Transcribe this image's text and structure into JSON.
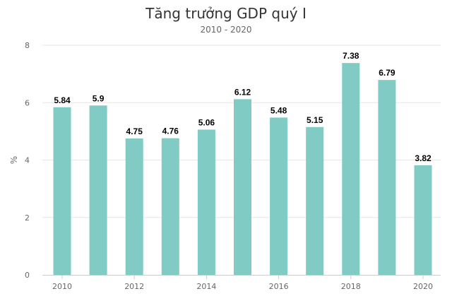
{
  "chart_data": {
    "type": "bar",
    "title": "Tăng trưởng GDP quý I",
    "subtitle": "2010 - 2020",
    "ylabel": "%",
    "xlabel": "",
    "categories": [
      "2010",
      "2011",
      "2012",
      "2013",
      "2014",
      "2015",
      "2016",
      "2017",
      "2018",
      "2019",
      "2020"
    ],
    "values": [
      5.84,
      5.9,
      4.75,
      4.76,
      5.06,
      6.12,
      5.48,
      5.15,
      7.38,
      6.79,
      3.82
    ],
    "data_labels": [
      "5.84",
      "5.9",
      "4.75",
      "4.76",
      "5.06",
      "6.12",
      "5.48",
      "5.15",
      "7.38",
      "6.79",
      "3.82"
    ],
    "x_tick_labels": [
      "2010",
      "2012",
      "2014",
      "2016",
      "2018",
      "2020"
    ],
    "y_tick_labels": [
      "0",
      "2",
      "4",
      "6",
      "8"
    ],
    "ylim": [
      0,
      8
    ],
    "grid": true,
    "legend": "none",
    "bar_color": "#80cbc4"
  }
}
